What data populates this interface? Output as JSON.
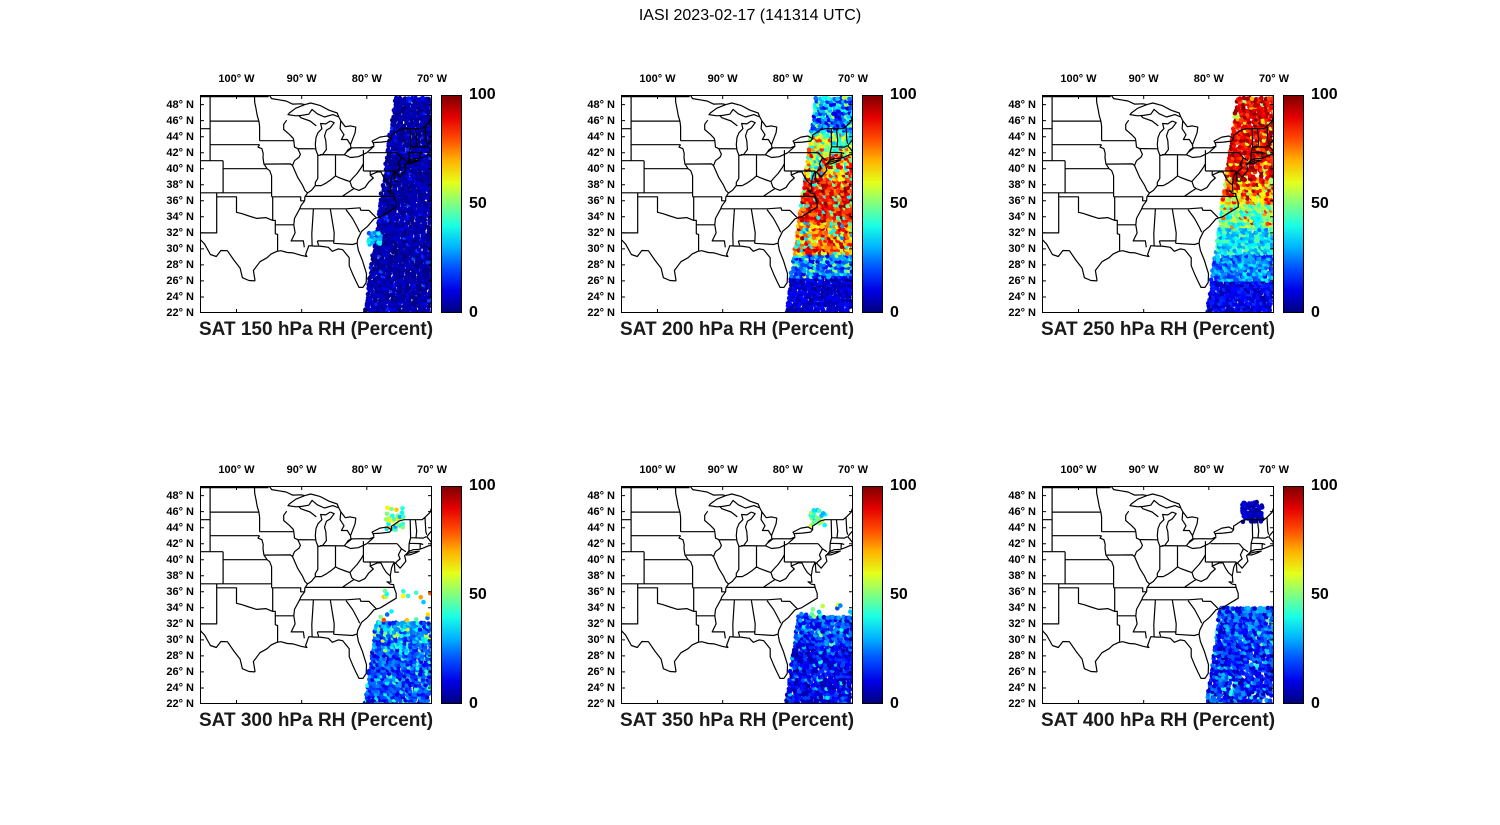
{
  "figure": {
    "title": "IASI 2023-02-17 (141314 UTC)",
    "background_color": "#ffffff"
  },
  "axes": {
    "lon_ticks": [
      {
        "label": "100° W",
        "deg_west": 100
      },
      {
        "label": "90° W",
        "deg_west": 90
      },
      {
        "label": "80° W",
        "deg_west": 80
      },
      {
        "label": "70° W",
        "deg_west": 70
      }
    ],
    "lat_ticks": [
      {
        "label": "48° N",
        "deg_north": 48
      },
      {
        "label": "46° N",
        "deg_north": 46
      },
      {
        "label": "44° N",
        "deg_north": 44
      },
      {
        "label": "42° N",
        "deg_north": 42
      },
      {
        "label": "40° N",
        "deg_north": 40
      },
      {
        "label": "38° N",
        "deg_north": 38
      },
      {
        "label": "36° N",
        "deg_north": 36
      },
      {
        "label": "34° N",
        "deg_north": 34
      },
      {
        "label": "32° N",
        "deg_north": 32
      },
      {
        "label": "30° N",
        "deg_north": 30
      },
      {
        "label": "28° N",
        "deg_north": 28
      },
      {
        "label": "26° N",
        "deg_north": 26
      },
      {
        "label": "24° N",
        "deg_north": 24
      },
      {
        "label": "22° N",
        "deg_north": 22
      }
    ],
    "lon_range_deg_west": [
      105.6,
      70.0
    ],
    "lat_range_deg_north": [
      22.0,
      49.2
    ]
  },
  "colorbar": {
    "min": 0,
    "max": 100,
    "tick_labels_top_to_bottom": [
      "100",
      "50",
      "0"
    ],
    "palette": "jet",
    "min_color": "#000080",
    "max_color": "#800000"
  },
  "swath_geometry": {
    "center_lon_at_22N": -75.4,
    "center_lon_slope_deg_per_deg_lat": 0.135,
    "width_deg_at_22N": 10.0,
    "width_slope_deg_per_deg_lat": -0.075,
    "lat_min": 22.1,
    "lat_max": 48.95
  },
  "chart_data": [
    {
      "type": "scatter",
      "title": "SAT 150 hPa RH (Percent)",
      "pressure_hPa": 150,
      "quantity": "RH",
      "units": "Percent",
      "x_ticks_deg_west": [
        100,
        90,
        80,
        70
      ],
      "y_ticks_deg_north": [
        48,
        46,
        44,
        42,
        40,
        38,
        36,
        34,
        32,
        30,
        28,
        26,
        24,
        22
      ],
      "colorbar": {
        "min": 0,
        "max": 100,
        "ticks": [
          0,
          50,
          100
        ]
      },
      "swath_bands": [
        {
          "lat": [
            22,
            48.95
          ],
          "rh": [
            0,
            8
          ],
          "coverage": 1,
          "speckle": {
            "frac": 0.05,
            "rh": [
              9,
              20
            ]
          }
        }
      ],
      "clusters": [
        {
          "lat": [
            30.6,
            32.2
          ],
          "lon": [
            -79.6,
            -77.6
          ],
          "coverage": 0.8,
          "rh": [
            18,
            40
          ]
        }
      ]
    },
    {
      "type": "scatter",
      "title": "SAT 200 hPa RH (Percent)",
      "pressure_hPa": 200,
      "quantity": "RH",
      "units": "Percent",
      "x_ticks_deg_west": [
        100,
        90,
        80,
        70
      ],
      "y_ticks_deg_north": [
        48,
        46,
        44,
        42,
        40,
        38,
        36,
        34,
        32,
        30,
        28,
        26,
        24,
        22
      ],
      "colorbar": {
        "min": 0,
        "max": 100,
        "ticks": [
          0,
          50,
          100
        ]
      },
      "swath_bands": [
        {
          "lat": [
            22,
            26.5
          ],
          "rh": [
            2,
            14
          ],
          "coverage": 1
        },
        {
          "lat": [
            26.5,
            29.5
          ],
          "rh": [
            8,
            35
          ],
          "coverage": 1,
          "speckle": {
            "frac": 0.12,
            "rh": [
              38,
              55
            ]
          }
        },
        {
          "lat": [
            29.5,
            33.5
          ],
          "rh": [
            55,
            98
          ],
          "coverage": 1,
          "speckle": {
            "frac": 0.15,
            "rh": [
              25,
              45
            ]
          }
        },
        {
          "lat": [
            33.5,
            38.5
          ],
          "rh": [
            72,
            100
          ],
          "coverage": 1,
          "speckle": {
            "frac": 0.1,
            "rh": [
              35,
              55
            ]
          }
        },
        {
          "lat": [
            38.5,
            42
          ],
          "rh": [
            55,
            95
          ],
          "coverage": 1,
          "speckle": {
            "frac": 0.25,
            "rh": [
              28,
              50
            ]
          }
        },
        {
          "lat": [
            42,
            44.5
          ],
          "rh": [
            30,
            65
          ],
          "coverage": 1,
          "speckle": {
            "frac": 0.15,
            "rh": [
              66,
              85
            ]
          }
        },
        {
          "lat": [
            44.5,
            48.95
          ],
          "rh": [
            8,
            42
          ],
          "coverage": 1,
          "speckle": {
            "frac": 0.1,
            "rh": [
              44,
              60
            ]
          }
        }
      ],
      "clusters": []
    },
    {
      "type": "scatter",
      "title": "SAT 250 hPa RH (Percent)",
      "pressure_hPa": 250,
      "quantity": "RH",
      "units": "Percent",
      "x_ticks_deg_west": [
        100,
        90,
        80,
        70
      ],
      "y_ticks_deg_north": [
        48,
        46,
        44,
        42,
        40,
        38,
        36,
        34,
        32,
        30,
        28,
        26,
        24,
        22
      ],
      "colorbar": {
        "min": 0,
        "max": 100,
        "ticks": [
          0,
          50,
          100
        ]
      },
      "swath_bands": [
        {
          "lat": [
            22,
            26
          ],
          "rh": [
            3,
            18
          ],
          "coverage": 1
        },
        {
          "lat": [
            26,
            29.5
          ],
          "rh": [
            14,
            38
          ],
          "coverage": 1
        },
        {
          "lat": [
            29.5,
            32.5
          ],
          "rh": [
            24,
            48
          ],
          "coverage": 1
        },
        {
          "lat": [
            32.5,
            35.5
          ],
          "rh": [
            34,
            60
          ],
          "coverage": 1,
          "speckle": {
            "frac": 0.1,
            "rh": [
              70,
              90
            ]
          }
        },
        {
          "lat": [
            35.5,
            38.5
          ],
          "rh": [
            48,
            85
          ],
          "coverage": 1,
          "speckle": {
            "frac": 0.15,
            "rh": [
              86,
              99
            ]
          }
        },
        {
          "lat": [
            38.5,
            48.95
          ],
          "rh": [
            80,
            100
          ],
          "coverage": 0.88,
          "speckle": {
            "frac": 0.09,
            "rh": [
              50,
              72
            ]
          }
        }
      ],
      "clusters": []
    },
    {
      "type": "scatter",
      "title": "SAT 300 hPa RH (Percent)",
      "pressure_hPa": 300,
      "quantity": "RH",
      "units": "Percent",
      "x_ticks_deg_west": [
        100,
        90,
        80,
        70
      ],
      "y_ticks_deg_north": [
        48,
        46,
        44,
        42,
        40,
        38,
        36,
        34,
        32,
        30,
        28,
        26,
        24,
        22
      ],
      "colorbar": {
        "min": 0,
        "max": 100,
        "ticks": [
          0,
          50,
          100
        ]
      },
      "swath_bands": [
        {
          "lat": [
            22,
            28.5
          ],
          "rh": [
            8,
            30
          ],
          "coverage": 1,
          "speckle": {
            "frac": 0.1,
            "rh": [
              31,
              46
            ]
          }
        },
        {
          "lat": [
            28.5,
            32.3
          ],
          "rh": [
            12,
            42
          ],
          "coverage": 1,
          "speckle": {
            "frac": 0.1,
            "rh": [
              44,
              60
            ]
          }
        },
        {
          "lat": [
            32.3,
            36.3
          ],
          "rh": [
            20,
            85
          ],
          "coverage": 0.1
        }
      ],
      "clusters": [
        {
          "lat": [
            43.8,
            46.5
          ],
          "lon": [
            -77.0,
            -74.2
          ],
          "coverage": 0.5,
          "rh": [
            25,
            72
          ]
        }
      ]
    },
    {
      "type": "scatter",
      "title": "SAT 350 hPa RH (Percent)",
      "pressure_hPa": 350,
      "quantity": "RH",
      "units": "Percent",
      "x_ticks_deg_west": [
        100,
        90,
        80,
        70
      ],
      "y_ticks_deg_north": [
        48,
        46,
        44,
        42,
        40,
        38,
        36,
        34,
        32,
        30,
        28,
        26,
        24,
        22
      ],
      "colorbar": {
        "min": 0,
        "max": 100,
        "ticks": [
          0,
          50,
          100
        ]
      },
      "swath_bands": [
        {
          "lat": [
            22,
            29.5
          ],
          "rh": [
            3,
            20
          ],
          "coverage": 1,
          "speckle": {
            "frac": 0.08,
            "rh": [
              22,
              38
            ]
          }
        },
        {
          "lat": [
            29.5,
            33.2
          ],
          "rh": [
            6,
            30
          ],
          "coverage": 1,
          "speckle": {
            "frac": 0.06,
            "rh": [
              32,
              52
            ]
          }
        },
        {
          "lat": [
            33.2,
            34.6
          ],
          "rh": [
            15,
            70
          ],
          "coverage": 0.22
        }
      ],
      "clusters": [
        {
          "lat": [
            44.2,
            46.3
          ],
          "lon": [
            -76.4,
            -74.2
          ],
          "coverage": 0.45,
          "rh": [
            28,
            58
          ]
        }
      ]
    },
    {
      "type": "scatter",
      "title": "SAT 400 hPa RH (Percent)",
      "pressure_hPa": 400,
      "quantity": "RH",
      "units": "Percent",
      "x_ticks_deg_west": [
        100,
        90,
        80,
        70
      ],
      "y_ticks_deg_north": [
        48,
        46,
        44,
        42,
        40,
        38,
        36,
        34,
        32,
        30,
        28,
        26,
        24,
        22
      ],
      "colorbar": {
        "min": 0,
        "max": 100,
        "ticks": [
          0,
          50,
          100
        ]
      },
      "swath_bands": [
        {
          "lat": [
            22,
            29.5
          ],
          "rh": [
            4,
            25
          ],
          "coverage": 0.96,
          "speckle": {
            "frac": 0.1,
            "rh": [
              26,
              42
            ]
          }
        },
        {
          "lat": [
            29.5,
            34.2
          ],
          "rh": [
            6,
            32
          ],
          "coverage": 1,
          "speckle": {
            "frac": 0.06,
            "rh": [
              33,
              50
            ]
          }
        }
      ],
      "clusters": [
        {
          "lat": [
            44.8,
            47.4
          ],
          "lon": [
            -74.8,
            -71.6
          ],
          "coverage": 0.8,
          "rh": [
            1,
            10
          ]
        }
      ]
    }
  ]
}
